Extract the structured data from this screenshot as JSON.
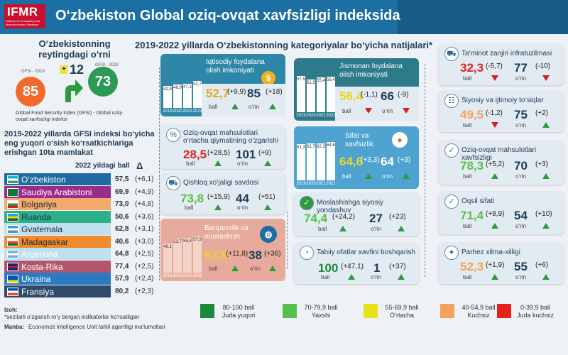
{
  "header": {
    "logo": "IFMR",
    "logo_sub": "Institute of Forecasting and Macroeconomic Research",
    "title": "O‘zbekiston Global oziq-ovqat xavfsizligi indeksida"
  },
  "rank": {
    "title": "O‘zbekistonning reytingdagi o‘rni",
    "gfsi_2019_label": "GFSI - 2019",
    "gfsi_2019": "85",
    "change_sign": "+",
    "change": "12",
    "gfsi_2022_label": "GFSI - 2022",
    "gfsi_2022": "73",
    "caption": "Global Food Security Index (GFSI) - Global oziq-ovqat xavfsizligi indeksi"
  },
  "top10": {
    "title": "2019-2022 yillarda GFSI indeksi bo‘yicha eng yuqori o‘sish ko‘rsatkichlariga erishgan 10ta mamlakat",
    "col_score": "2022 yildagi ball",
    "col_delta": "Δ",
    "rows": [
      {
        "name": "O‘zbekiston",
        "score": "57,5",
        "delta": "(+6,1)",
        "bg": "#1e6aa0",
        "fg": "#ffffff",
        "flag": [
          "#1eb3e0",
          "#ffffff",
          "#2bae48"
        ]
      },
      {
        "name": "Saudiya Arabistoni",
        "score": "69,9",
        "delta": "(+4,9)",
        "bg": "#9b2d8a",
        "fg": "#ffffff",
        "flag": [
          "#0a7b3a",
          "#0a7b3a",
          "#0a7b3a"
        ]
      },
      {
        "name": "Bolgariya",
        "score": "73,0",
        "delta": "(+4,8)",
        "bg": "#f2a96b",
        "fg": "#1f2d3a",
        "flag": [
          "#ffffff",
          "#1f9a53",
          "#d62612"
        ]
      },
      {
        "name": "Ruanda",
        "score": "50,6",
        "delta": "(+3,6)",
        "bg": "#2bb08a",
        "fg": "#1f2d3a",
        "flag": [
          "#20a0d8",
          "#fad201",
          "#20603d"
        ]
      },
      {
        "name": "Gvatemala",
        "score": "62,8",
        "delta": "(+3,1)",
        "bg": "#bfe0ee",
        "fg": "#1f2d3a",
        "flag": [
          "#4997d0",
          "#ffffff",
          "#4997d0"
        ]
      },
      {
        "name": "Madagaskar",
        "score": "40,6",
        "delta": "(+3,0)",
        "bg": "#f08a2a",
        "fg": "#1f2d3a",
        "flag": [
          "#ffffff",
          "#fc3d32",
          "#007e3a"
        ]
      },
      {
        "name": "Argentina",
        "score": "64,8",
        "delta": "(+2,5)",
        "bg": "#bfe0ee",
        "fg": "#ffffff",
        "flag": [
          "#74acdf",
          "#ffffff",
          "#74acdf"
        ]
      },
      {
        "name": "Kosta-Rika",
        "score": "77,4",
        "delta": "(+2,5)",
        "bg": "#b2566d",
        "fg": "#ffffff",
        "flag": [
          "#002b7f",
          "#ce1126",
          "#002b7f"
        ]
      },
      {
        "name": "Ukraina",
        "score": "57,9",
        "delta": "(+2,4)",
        "bg": "#2a7bc2",
        "fg": "#ffffff",
        "flag": [
          "#0057b7",
          "#0057b7",
          "#ffd700"
        ]
      },
      {
        "name": "Fransiya",
        "score": "80,2",
        "delta": "(+2,3)",
        "bg": "#2f4b6a",
        "fg": "#ffffff",
        "flag": [
          "#0055a4",
          "#ffffff",
          "#ef4135"
        ]
      }
    ]
  },
  "categories_title": "2019-2022 yillarda O‘zbekistonning kategoriyalar bo‘yicha natijalari*",
  "labels": {
    "ball": "ball",
    "orin": "o‘rin"
  },
  "chart_data": [
    {
      "type": "bar",
      "title": "Iqtisodiy foydalana olish imkoniyati",
      "categories": [
        "2019",
        "2020",
        "2021",
        "2022"
      ],
      "values": [
        42.8,
        46.9,
        47.1,
        52.7
      ]
    },
    {
      "type": "bar",
      "title": "Jismonan foydalana olish imkoniyati",
      "categories": [
        "2019",
        "2020",
        "2021",
        "2022"
      ],
      "values": [
        57.5,
        51.5,
        55.4,
        56.4
      ]
    },
    {
      "type": "bar",
      "title": "Sifat va xavfsizlik",
      "categories": [
        "2019",
        "2020",
        "2021",
        "2022"
      ],
      "values": [
        61.3,
        62.7,
        62.3,
        64.6
      ]
    },
    {
      "type": "bar",
      "title": "Barqarorlik va moslashish",
      "categories": [
        "2019",
        "2020",
        "2021",
        "2022"
      ],
      "values": [
        46.1,
        53.7,
        55.8,
        57.9
      ]
    }
  ],
  "big_cards": {
    "iqtisodiy": {
      "title": "Iqtisodiy foydalana olish imkoniyati",
      "ball": "52,7",
      "chg": "(+9,9)",
      "orin": "85",
      "ochg": "(+18)",
      "icon": "$"
    },
    "jismonan": {
      "title": "Jismonan foydalana olish imkoniyati",
      "ball": "56,4",
      "chg": "(-1,1)",
      "orin": "66",
      "ochg": "(-9)"
    },
    "sifat": {
      "title": "Sifat va xavfsizlik",
      "ball": "64,6",
      "chg": "(+3,3)",
      "orin": "64",
      "ochg": "(+3)"
    },
    "barqaror": {
      "title": "Barqarorlik va moslashish",
      "ball": "57,9",
      "chg": "(+11,8)",
      "orin": "38",
      "ochg": "(+36)"
    }
  },
  "small_cards": {
    "narx": {
      "title": "Oziq-ovqat mahsulotlari o‘rtacha qiymatining o‘zgarishi",
      "ball": "28,5",
      "chg": "(+28,5)",
      "orin": "101",
      "ochg": "(+9)"
    },
    "qishloq": {
      "title": "Qishloq xo‘jaligi savdosi",
      "ball": "73,8",
      "chg": "(+15,9)",
      "orin": "44",
      "ochg": "(+51)"
    },
    "moslash": {
      "title": "Moslashishga siyosiy yondashuv",
      "ball": "74,4",
      "chg": "(+24,2)",
      "orin": "27",
      "ochg": "(+23)"
    },
    "tabiiy": {
      "title": "Tabiiy ofatlar xavfini boshqarish",
      "ball": "100",
      "chg": "(+47,1)",
      "orin": "1",
      "ochg": "(+37)"
    },
    "taminot": {
      "title": "Ta‘minot zanjiri infratuzilmasi",
      "ball": "32,3",
      "chg": "(-5,7)",
      "orin": "77",
      "ochg": "(-10)"
    },
    "siyosiy": {
      "title": "Siyosiy va ijtimoiy to‘siqlar",
      "ball": "49,5",
      "chg": "(-1,2)",
      "orin": "75",
      "ochg": "(+2)"
    },
    "xavfsiz": {
      "title": "Oziq-ovqat mahsulotlari xavfsizligi",
      "ball": "78,3",
      "chg": "(+5,2)",
      "orin": "70",
      "ochg": "(+3)"
    },
    "oqsil": {
      "title": "Oqsil sifati",
      "ball": "71,4",
      "chg": "(+8,9)",
      "orin": "54",
      "ochg": "(+10)"
    },
    "parhez": {
      "title": "Parhez xilma-xilligi",
      "ball": "52,3",
      "chg": "(+1,9)",
      "orin": "55",
      "ochg": "(+6)"
    }
  },
  "legend": [
    {
      "range": "80-100 ball",
      "label": "Juda yuqori",
      "color": "#1a8a3a"
    },
    {
      "range": "70-79,9 ball",
      "label": "Yaxshi",
      "color": "#56c04a"
    },
    {
      "range": "55-69,9 ball",
      "label": "O‘rtacha",
      "color": "#e8e21a"
    },
    {
      "range": "40-54,9 ball",
      "label": "Kuchsiz",
      "color": "#f4a259"
    },
    {
      "range": "0-39,9 ball",
      "label": "Juda kuchsiz",
      "color": "#e3221b"
    }
  ],
  "notes": {
    "izoh": "Izoh:",
    "izoh_text": "*sezilarli o‘zgarish ro‘y bergan indikatorlar ko‘rsatilgan",
    "manba": "Manba:",
    "manba_text": "Economist Intelligence Unit tahlil agentligi ma‘lumotlari"
  }
}
